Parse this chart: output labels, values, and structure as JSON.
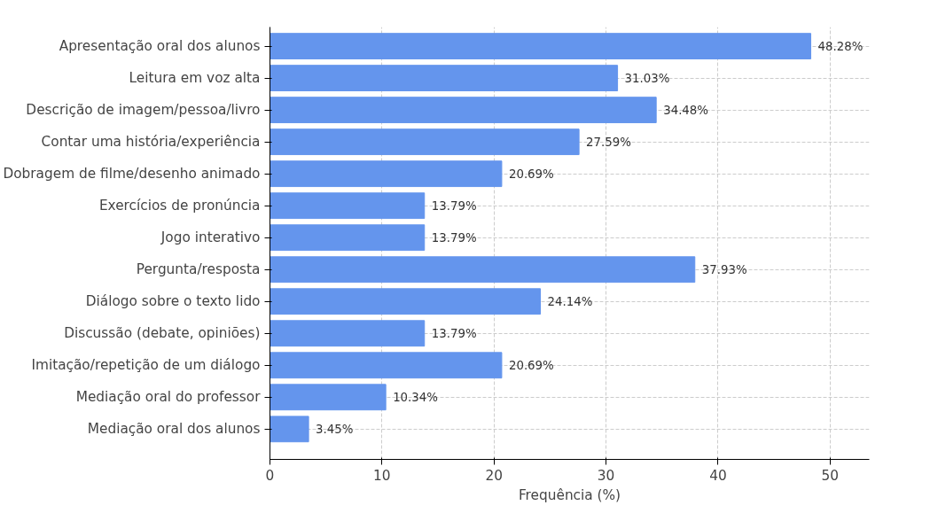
{
  "chart_data": {
    "type": "bar",
    "orientation": "horizontal",
    "xlabel": "Frequência (%)",
    "categories": [
      "Apresentação oral dos alunos",
      "Leitura em voz alta",
      "Descrição de imagem/pessoa/livro",
      "Contar uma história/experiência",
      "Dobragem de filme/desenho animado",
      "Exercícios de pronúncia",
      "Jogo interativo",
      "Pergunta/resposta",
      "Diálogo sobre o texto lido",
      "Discussão (debate, opiniões)",
      "Imitação/repetição de um diálogo",
      "Mediação oral do professor",
      "Mediação oral dos alunos"
    ],
    "values": [
      48.28,
      31.03,
      34.48,
      27.59,
      20.69,
      13.79,
      13.79,
      37.93,
      24.14,
      13.79,
      20.69,
      10.34,
      3.45
    ],
    "value_labels": [
      "48.28%",
      "31.03%",
      "34.48%",
      "27.59%",
      "20.69%",
      "13.79%",
      "13.79%",
      "37.93%",
      "24.14%",
      "13.79%",
      "20.69%",
      "10.34%",
      "3.45%"
    ],
    "color": "#6495ed",
    "xlim": [
      0,
      53.5
    ],
    "xticks": [
      0,
      10,
      20,
      30,
      40,
      50
    ],
    "grid": true
  }
}
